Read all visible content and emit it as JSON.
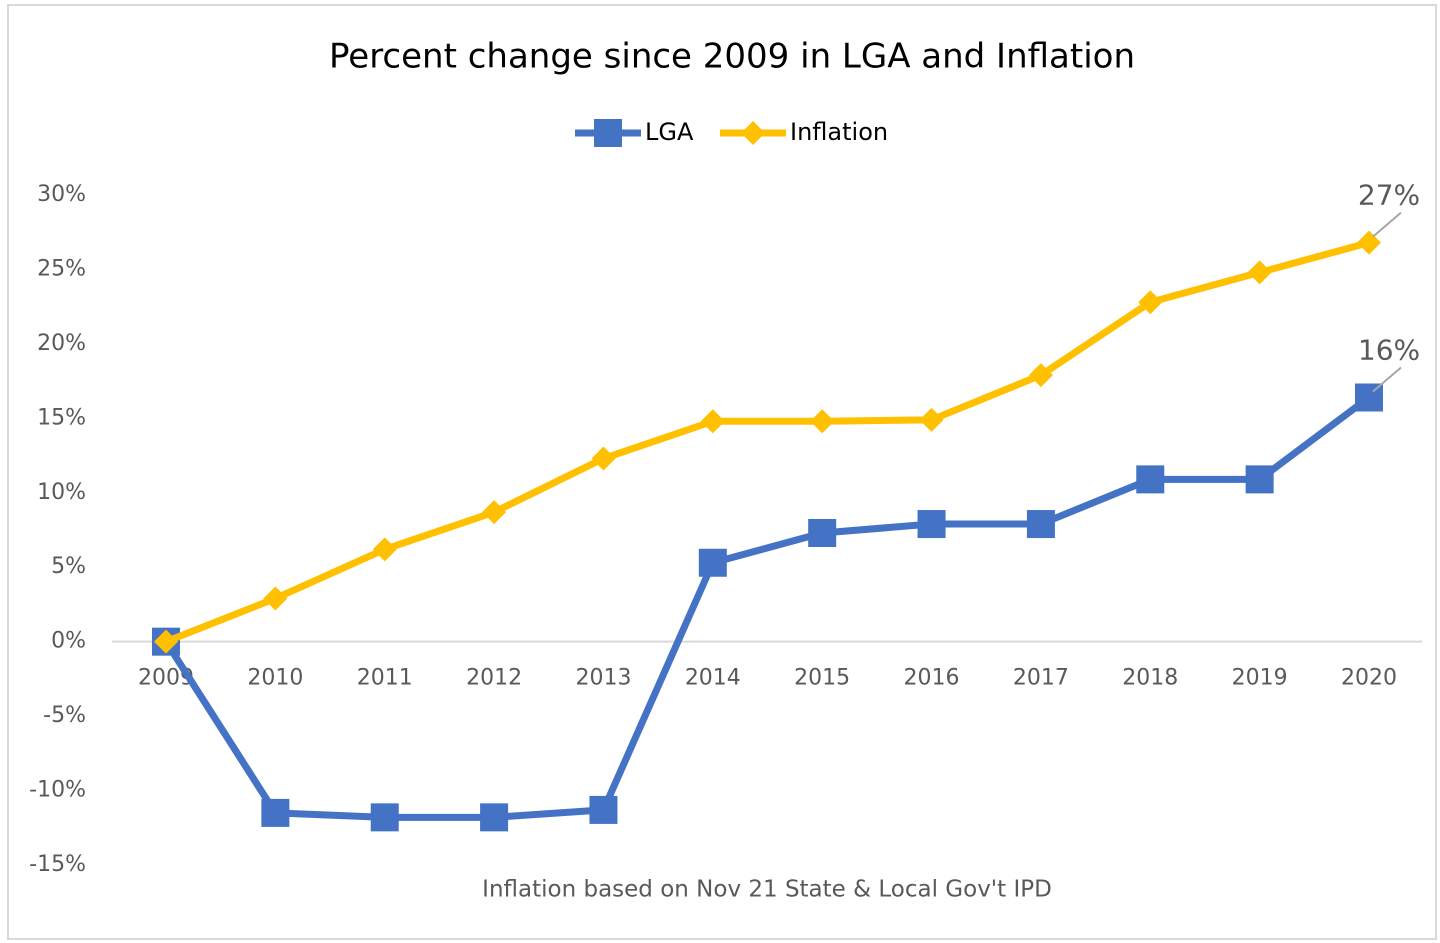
{
  "chart_data": {
    "type": "line",
    "title": "Percent change since 2009 in LGA and Inflation",
    "annotation": "Inflation based on Nov 21 State & Local Gov't IPD",
    "categories": [
      "2009",
      "2010",
      "2011",
      "2012",
      "2013",
      "2014",
      "2015",
      "2016",
      "2017",
      "2018",
      "2019",
      "2020"
    ],
    "series": [
      {
        "name": "LGA",
        "color": "#4472c4",
        "marker": "square",
        "values": [
          0,
          -11.5,
          -11.8,
          -11.8,
          -11.3,
          5.3,
          7.3,
          7.9,
          7.9,
          10.9,
          10.9,
          16.4
        ],
        "value_labels": [
          null,
          null,
          null,
          null,
          null,
          null,
          null,
          null,
          null,
          null,
          null,
          "16%"
        ]
      },
      {
        "name": "Inflation",
        "color": "#ffc000",
        "marker": "diamond",
        "values": [
          0,
          2.9,
          6.2,
          8.7,
          12.3,
          14.8,
          14.8,
          14.9,
          17.9,
          22.8,
          24.8,
          26.8
        ],
        "value_labels": [
          null,
          null,
          null,
          null,
          null,
          null,
          null,
          null,
          null,
          null,
          null,
          "27%"
        ]
      }
    ],
    "ylim": [
      -15,
      30
    ],
    "yticks": [
      {
        "value": 30,
        "label": "30%"
      },
      {
        "value": 25,
        "label": "25%"
      },
      {
        "value": 20,
        "label": "20%"
      },
      {
        "value": 15,
        "label": "15%"
      },
      {
        "value": 10,
        "label": "10%"
      },
      {
        "value": 5,
        "label": "5%"
      },
      {
        "value": 0,
        "label": "0%"
      },
      {
        "value": -5,
        "label": "-5%"
      },
      {
        "value": -10,
        "label": "-10%"
      },
      {
        "value": -15,
        "label": "-15%"
      }
    ],
    "grid": false,
    "legend": "top"
  }
}
